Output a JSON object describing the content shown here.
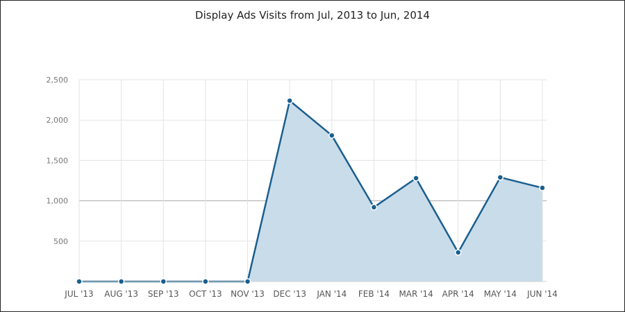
{
  "chart_data": {
    "type": "area",
    "title": "Display Ads Visits from Jul, 2013 to Jun, 2014",
    "xlabel": "",
    "ylabel": "",
    "categories": [
      "JUL '13",
      "AUG '13",
      "SEP '13",
      "OCT '13",
      "NOV '13",
      "DEC '13",
      "JAN '14",
      "FEB '14",
      "MAR '14",
      "APR '14",
      "MAY '14",
      "JUN '14"
    ],
    "series": [
      {
        "values": [
          0,
          0,
          0,
          0,
          0,
          2240,
          1810,
          920,
          1280,
          360,
          1290,
          1160
        ],
        "color": "#1a5f8e",
        "fill": "#c9dcea"
      }
    ],
    "ylim": [
      0,
      2500
    ],
    "yticks": [
      0,
      500,
      1000,
      1500,
      2000,
      2500
    ],
    "ytick_labels": [
      "",
      "500",
      "1,000",
      "1,500",
      "2,000",
      "2,500"
    ],
    "grid": true,
    "legend": "none"
  }
}
